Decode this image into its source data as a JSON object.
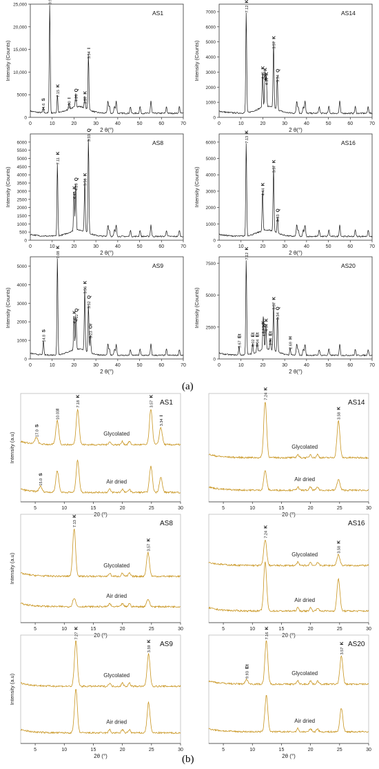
{
  "figure": {
    "label_a": "(a)",
    "label_b": "(b)"
  },
  "chart_data": [
    {
      "type": "line",
      "panel": "a",
      "title": "AS1",
      "xlabel": "2 θ(°)",
      "ylabel": "Intensity (Counts)",
      "xlim": [
        0,
        70
      ],
      "ylim": [
        0,
        25000
      ],
      "xticks": [
        10,
        20,
        30,
        40,
        50,
        60,
        70
      ],
      "yticks": [
        0,
        5000,
        10000,
        15000,
        20000,
        25000
      ],
      "ytick_labels": [
        "0",
        "5000",
        "10,000",
        "15,000",
        "20,000",
        "25,000"
      ],
      "color": "#111111",
      "peaks": [
        {
          "x": 5.9,
          "y": 1000,
          "label": "14.6",
          "mineral": "S"
        },
        {
          "x": 8.9,
          "y": 24500,
          "label": "9.96",
          "mineral": "I"
        },
        {
          "x": 12.4,
          "y": 4000,
          "label": "7.15",
          "mineral": "K"
        },
        {
          "x": 17.7,
          "y": 1500,
          "label": "5.00",
          "mineral": "I"
        },
        {
          "x": 20.8,
          "y": 3000,
          "label": "4.26",
          "mineral": "Q"
        },
        {
          "x": 24.9,
          "y": 2500,
          "label": "3.57",
          "mineral": "K"
        },
        {
          "x": 26.6,
          "y": 12500,
          "label": "3.34",
          "mineral": "I"
        }
      ]
    },
    {
      "type": "line",
      "panel": "a",
      "title": "AS14",
      "xlabel": "2 θ(°)",
      "ylabel": "Intensity (Counts)",
      "xlim": [
        0,
        70
      ],
      "ylim": [
        0,
        7500
      ],
      "xticks": [
        10,
        20,
        30,
        40,
        50,
        60,
        70
      ],
      "yticks": [
        0,
        1000,
        2000,
        3000,
        4000,
        5000,
        6000,
        7000
      ],
      "color": "#111111",
      "peaks": [
        {
          "x": 12.4,
          "y": 6800,
          "label": "7.12",
          "mineral": "K"
        },
        {
          "x": 19.9,
          "y": 2400,
          "label": "4.45",
          "mineral": "K"
        },
        {
          "x": 21.0,
          "y": 2300,
          "label": "4.35",
          "mineral": "K"
        },
        {
          "x": 21.6,
          "y": 2000,
          "label": "4.16",
          "mineral": "K"
        },
        {
          "x": 24.9,
          "y": 4400,
          "label": "3.57",
          "mineral": "K"
        },
        {
          "x": 26.6,
          "y": 2200,
          "label": "3.34",
          "mineral": "Q"
        }
      ]
    },
    {
      "type": "line",
      "panel": "a",
      "title": "AS8",
      "xlabel": "2 θ(°)",
      "ylabel": "Intensity (Counts)",
      "xlim": [
        0,
        70
      ],
      "ylim": [
        0,
        6500
      ],
      "xticks": [
        10,
        20,
        30,
        40,
        50,
        60,
        70
      ],
      "yticks": [
        0,
        500,
        1000,
        1500,
        2000,
        2500,
        3000,
        3500,
        4000,
        4500,
        5000,
        5500,
        6000
      ],
      "color": "#111111",
      "peaks": [
        {
          "x": 12.4,
          "y": 4500,
          "label": "7.11",
          "mineral": "K"
        },
        {
          "x": 20.0,
          "y": 2400,
          "label": "4.45",
          "mineral": "K"
        },
        {
          "x": 20.8,
          "y": 2900,
          "label": "4.25",
          "mineral": "Q"
        },
        {
          "x": 24.9,
          "y": 3200,
          "label": "3.56",
          "mineral": "K"
        },
        {
          "x": 26.6,
          "y": 5900,
          "label": "3.33",
          "mineral": "Q"
        }
      ]
    },
    {
      "type": "line",
      "panel": "a",
      "title": "AS16",
      "xlabel": "2 θ(°)",
      "ylabel": "Intensity (Counts)",
      "xlim": [
        0,
        70
      ],
      "ylim": [
        0,
        6500
      ],
      "xticks": [
        10,
        20,
        30,
        40,
        50,
        60,
        70
      ],
      "yticks": [
        0,
        1000,
        2000,
        3000,
        4000,
        5000,
        6000
      ],
      "color": "#111111",
      "peaks": [
        {
          "x": 12.4,
          "y": 5800,
          "label": "7.13",
          "mineral": "K"
        },
        {
          "x": 19.9,
          "y": 2600,
          "label": "4.44",
          "mineral": "K"
        },
        {
          "x": 24.9,
          "y": 4000,
          "label": "3.57",
          "mineral": "K"
        },
        {
          "x": 26.7,
          "y": 1000,
          "label": "3.33",
          "mineral": "Q"
        }
      ]
    },
    {
      "type": "line",
      "panel": "a",
      "title": "AS9",
      "xlabel": "2 θ(°)",
      "ylabel": "Intensity (Counts)",
      "xlim": [
        0,
        70
      ],
      "ylim": [
        0,
        5500
      ],
      "xticks": [
        10,
        20,
        30,
        40,
        50,
        60,
        70
      ],
      "yticks": [
        0,
        1000,
        2000,
        3000,
        4000,
        5000
      ],
      "color": "#111111",
      "peaks": [
        {
          "x": 6.0,
          "y": 800,
          "label": "14.8",
          "mineral": "S"
        },
        {
          "x": 12.4,
          "y": 5300,
          "label": "7.08",
          "mineral": "K"
        },
        {
          "x": 20.0,
          "y": 1800,
          "label": "4.42",
          "mineral": "K"
        },
        {
          "x": 20.9,
          "y": 1900,
          "label": "4.22",
          "mineral": "Q"
        },
        {
          "x": 24.9,
          "y": 3400,
          "label": "3.56",
          "mineral": "K"
        },
        {
          "x": 26.6,
          "y": 2600,
          "label": "3.32",
          "mineral": "Q"
        },
        {
          "x": 27.5,
          "y": 1000,
          "label": "3.23",
          "mineral": "Or"
        }
      ]
    },
    {
      "type": "line",
      "panel": "a",
      "title": "AS20",
      "xlabel": "2 θ(°)",
      "ylabel": "Intensity (Counts)",
      "xlim": [
        0,
        70
      ],
      "ylim": [
        0,
        8000
      ],
      "xticks": [
        10,
        20,
        30,
        40,
        50,
        60,
        70
      ],
      "yticks": [
        0,
        2500,
        5000,
        7500
      ],
      "color": "#111111",
      "peaks": [
        {
          "x": 9.1,
          "y": 700,
          "label": "9.67",
          "mineral": "Et"
        },
        {
          "x": 12.4,
          "y": 7600,
          "label": "7.12",
          "mineral": "K"
        },
        {
          "x": 15.3,
          "y": 800,
          "label": "6.02",
          "mineral": "Et"
        },
        {
          "x": 17.4,
          "y": 800,
          "label": "5.04",
          "mineral": "Et"
        },
        {
          "x": 20.1,
          "y": 1800,
          "label": "4.44",
          "mineral": "K"
        },
        {
          "x": 20.4,
          "y": 1600,
          "label": "4.37",
          "mineral": "K"
        },
        {
          "x": 21.4,
          "y": 2000,
          "label": "4.34",
          "mineral": "K"
        },
        {
          "x": 23.4,
          "y": 900,
          "label": "3.80",
          "mineral": "Et"
        },
        {
          "x": 24.9,
          "y": 3700,
          "label": "3.57",
          "mineral": "K"
        },
        {
          "x": 26.7,
          "y": 2900,
          "label": "3.34",
          "mineral": "Q"
        },
        {
          "x": 32.5,
          "y": 600,
          "label": "2.69",
          "mineral": "H"
        }
      ]
    },
    {
      "type": "line",
      "panel": "b",
      "title": "AS1",
      "xlabel": "2θ (°)",
      "ylabel": "Intensity (a.u)",
      "xlim": [
        2.5,
        30
      ],
      "ylim": [
        0,
        100
      ],
      "xticks": [
        5,
        10,
        15,
        20,
        25,
        30
      ],
      "color": "#c8941e",
      "series": [
        {
          "name": "Glycolated",
          "offset": 52,
          "peaks": [
            {
              "x": 5.2,
              "y": 6,
              "label": "17.0",
              "mineral": "S"
            },
            {
              "x": 8.8,
              "y": 22,
              "label": "10.03",
              "mineral": "I"
            },
            {
              "x": 12.3,
              "y": 33,
              "label": "7.18",
              "mineral": "K"
            },
            {
              "x": 24.9,
              "y": 33,
              "label": "3.57",
              "mineral": "K"
            },
            {
              "x": 26.6,
              "y": 16,
              "label": "3.34",
              "mineral": "I"
            }
          ]
        },
        {
          "name": "Air dried",
          "offset": 8,
          "peaks": [
            {
              "x": 5.9,
              "y": 5,
              "label": "15.0",
              "mineral": "S"
            },
            {
              "x": 8.8,
              "y": 20,
              "label": "",
              "mineral": ""
            },
            {
              "x": 12.3,
              "y": 30,
              "label": "",
              "mineral": ""
            },
            {
              "x": 24.9,
              "y": 24,
              "label": "",
              "mineral": ""
            },
            {
              "x": 26.6,
              "y": 14,
              "label": "",
              "mineral": ""
            }
          ]
        }
      ]
    },
    {
      "type": "line",
      "panel": "b",
      "title": "AS14",
      "xlabel": "2θ (°)",
      "ylabel": "",
      "xlim": [
        2.5,
        30
      ],
      "ylim": [
        0,
        100
      ],
      "xticks": [
        5,
        10,
        15,
        20,
        25,
        30
      ],
      "color": "#c8941e",
      "series": [
        {
          "name": "Glycolated",
          "offset": 40,
          "peaks": [
            {
              "x": 12.2,
              "y": 52,
              "label": "7.24",
              "mineral": "K"
            },
            {
              "x": 24.8,
              "y": 34,
              "label": "3.58",
              "mineral": "K"
            }
          ]
        },
        {
          "name": "Air dried",
          "offset": 10,
          "peaks": [
            {
              "x": 12.2,
              "y": 18,
              "label": "",
              "mineral": ""
            },
            {
              "x": 24.8,
              "y": 10,
              "label": "",
              "mineral": ""
            }
          ]
        }
      ]
    },
    {
      "type": "line",
      "panel": "b",
      "title": "AS8",
      "xlabel": "2θ (°)",
      "ylabel": "Intensity (a.u)",
      "xlim": [
        2.5,
        30
      ],
      "ylim": [
        0,
        100
      ],
      "xticks": [
        5,
        10,
        15,
        20,
        25,
        30
      ],
      "color": "#c8941e",
      "series": [
        {
          "name": "Glycolated",
          "offset": 42,
          "peaks": [
            {
              "x": 11.7,
              "y": 44,
              "label": "7.13",
              "mineral": "K"
            },
            {
              "x": 24.4,
              "y": 22,
              "label": "3.57",
              "mineral": "K"
            }
          ]
        },
        {
          "name": "Air dried",
          "offset": 14,
          "peaks": [
            {
              "x": 11.7,
              "y": 8,
              "label": "",
              "mineral": ""
            },
            {
              "x": 24.4,
              "y": 7,
              "label": "",
              "mineral": ""
            }
          ]
        }
      ]
    },
    {
      "type": "line",
      "panel": "b",
      "title": "AS16",
      "xlabel": "2θ (°)",
      "ylabel": "",
      "xlim": [
        2.5,
        30
      ],
      "ylim": [
        0,
        100
      ],
      "xticks": [
        5,
        10,
        15,
        20,
        25,
        30
      ],
      "color": "#c8941e",
      "series": [
        {
          "name": "Glycolated",
          "offset": 52,
          "peaks": [
            {
              "x": 12.2,
              "y": 24,
              "label": "7.24",
              "mineral": "K"
            },
            {
              "x": 24.8,
              "y": 10,
              "label": "3.58",
              "mineral": "K"
            }
          ]
        },
        {
          "name": "Air dried",
          "offset": 10,
          "peaks": [
            {
              "x": 12.2,
              "y": 45,
              "label": "",
              "mineral": ""
            },
            {
              "x": 24.8,
              "y": 30,
              "label": "",
              "mineral": ""
            }
          ]
        }
      ]
    },
    {
      "type": "line",
      "panel": "b",
      "title": "AS9",
      "xlabel": "2θ (°)",
      "ylabel": "Intensity (a.u)",
      "xlim": [
        2.5,
        30
      ],
      "ylim": [
        0,
        100
      ],
      "xticks": [
        5,
        10,
        15,
        20,
        25,
        30
      ],
      "color": "#c8941e",
      "series": [
        {
          "name": "Glycolated",
          "offset": 52,
          "peaks": [
            {
              "x": 12.0,
              "y": 42,
              "label": "7.27",
              "mineral": "K"
            },
            {
              "x": 24.5,
              "y": 30,
              "label": "3.59",
              "mineral": "K"
            }
          ]
        },
        {
          "name": "Air dried",
          "offset": 9,
          "peaks": [
            {
              "x": 12.0,
              "y": 40,
              "label": "",
              "mineral": ""
            },
            {
              "x": 24.5,
              "y": 28,
              "label": "",
              "mineral": ""
            }
          ]
        }
      ]
    },
    {
      "type": "line",
      "panel": "b",
      "title": "AS20",
      "xlabel": "2θ (°)",
      "ylabel": "",
      "xlim": [
        2.5,
        30
      ],
      "ylim": [
        0,
        100
      ],
      "xticks": [
        5,
        10,
        15,
        20,
        25,
        30
      ],
      "color": "#c8941e",
      "series": [
        {
          "name": "Glycolated",
          "offset": 54,
          "peaks": [
            {
              "x": 9.0,
              "y": 4,
              "label": "9.93",
              "mineral": "Et"
            },
            {
              "x": 12.4,
              "y": 40,
              "label": "7.16",
              "mineral": "K"
            },
            {
              "x": 25.3,
              "y": 26,
              "label": "3.57",
              "mineral": "K"
            }
          ]
        },
        {
          "name": "Air dried",
          "offset": 10,
          "peaks": [
            {
              "x": 12.4,
              "y": 34,
              "label": "",
              "mineral": ""
            },
            {
              "x": 25.3,
              "y": 22,
              "label": "",
              "mineral": ""
            }
          ]
        }
      ]
    }
  ]
}
